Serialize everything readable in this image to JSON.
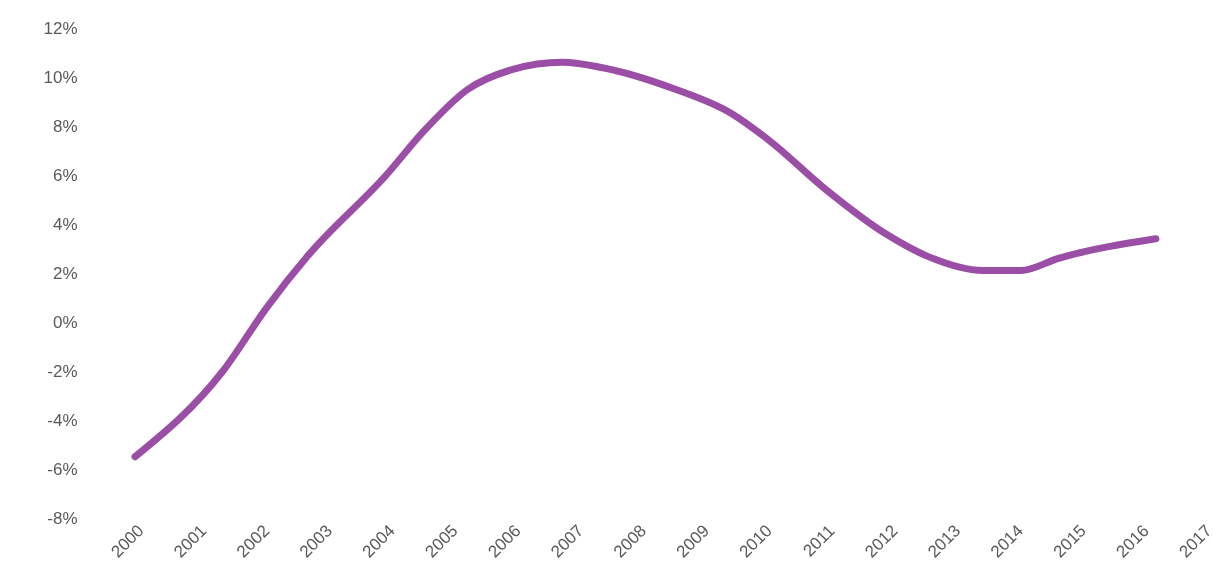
{
  "chart_data": {
    "type": "line",
    "line_style": "solid",
    "x": [
      2000,
      2001.4,
      2002.1,
      2002.75,
      2004.0,
      2004.6,
      2005.3,
      2006.0,
      2006.8,
      2007.4,
      2008.6,
      2009.5,
      2010.1,
      2011.0,
      2011.95,
      2012.6,
      2013.5,
      2014.1,
      2014.7,
      2016.25
    ],
    "series": [
      {
        "color": "#9b4ea6",
        "values": [
          -5.5,
          -2.0,
          0.6,
          2.7,
          6.0,
          7.8,
          9.5,
          10.3,
          10.6,
          10.4,
          9.5,
          8.5,
          7.4,
          5.4,
          3.6,
          2.7,
          2.1,
          2.1,
          2.6,
          3.4
        ]
      }
    ],
    "xlim": [
      2000,
      2017
    ],
    "xticks": [
      2000,
      2001,
      2002,
      2003,
      2004,
      2005,
      2006,
      2007,
      2008,
      2009,
      2010,
      2011,
      2012,
      2013,
      2014,
      2015,
      2016,
      2017
    ],
    "ylim": [
      -8,
      12
    ],
    "yticks": [
      {
        "value": -8,
        "label": "-8%"
      },
      {
        "value": -6,
        "label": "-6%"
      },
      {
        "value": -4,
        "label": "-4%"
      },
      {
        "value": -2,
        "label": "-2%"
      },
      {
        "value": 0,
        "label": "0%"
      },
      {
        "value": 2,
        "label": "2%"
      },
      {
        "value": 4,
        "label": "4%"
      },
      {
        "value": 6,
        "label": "6%"
      },
      {
        "value": 8,
        "label": "8%"
      },
      {
        "value": 10,
        "label": "10%"
      },
      {
        "value": 12,
        "label": "12%"
      }
    ],
    "grid": false
  }
}
